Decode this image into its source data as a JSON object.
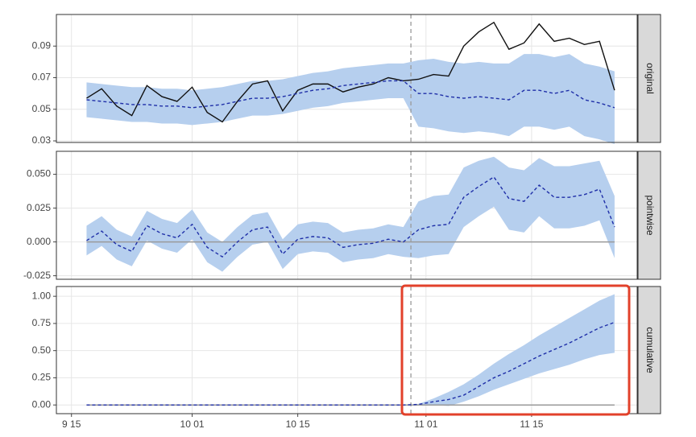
{
  "chart_data": [
    {
      "type": "line",
      "strip": "original",
      "x": [
        "9 17",
        "9 19",
        "9 21",
        "9 23",
        "9 25",
        "9 27",
        "9 29",
        "10 01",
        "10 03",
        "10 05",
        "10 07",
        "10 09",
        "10 11",
        "10 13",
        "10 15",
        "10 17",
        "10 19",
        "10 21",
        "10 23",
        "10 25",
        "10 27",
        "10 29",
        "10 31",
        "11 02",
        "11 04",
        "11 06",
        "11 08",
        "11 10",
        "11 12",
        "11 14",
        "11 16",
        "11 18",
        "11 20",
        "11 22",
        "11 24",
        "11 26"
      ],
      "xlim": [
        "9 13",
        "11 29"
      ],
      "vline": "10 30",
      "ylim": [
        0.029,
        0.11
      ],
      "yticks": [
        0.03,
        0.05,
        0.07,
        0.09
      ],
      "band": {
        "color": "#b6cfee",
        "lower": [
          0.045,
          0.044,
          0.043,
          0.042,
          0.042,
          0.041,
          0.041,
          0.04,
          0.041,
          0.042,
          0.044,
          0.046,
          0.046,
          0.047,
          0.049,
          0.051,
          0.052,
          0.054,
          0.055,
          0.056,
          0.057,
          0.057,
          0.039,
          0.038,
          0.036,
          0.035,
          0.036,
          0.035,
          0.033,
          0.039,
          0.039,
          0.037,
          0.039,
          0.033,
          0.031,
          0.028
        ],
        "upper": [
          0.067,
          0.066,
          0.065,
          0.064,
          0.064,
          0.063,
          0.063,
          0.062,
          0.063,
          0.064,
          0.066,
          0.068,
          0.068,
          0.069,
          0.071,
          0.073,
          0.074,
          0.076,
          0.077,
          0.078,
          0.079,
          0.079,
          0.081,
          0.082,
          0.08,
          0.079,
          0.08,
          0.079,
          0.079,
          0.085,
          0.085,
          0.083,
          0.085,
          0.079,
          0.077,
          0.074
        ]
      },
      "series": [
        {
          "color": "#111111",
          "dashed": false,
          "values": [
            0.057,
            0.063,
            0.052,
            0.046,
            0.065,
            0.058,
            0.055,
            0.064,
            0.048,
            0.042,
            0.055,
            0.066,
            0.068,
            0.049,
            0.062,
            0.066,
            0.066,
            0.061,
            0.064,
            0.066,
            0.07,
            0.068,
            0.069,
            0.072,
            0.071,
            0.09,
            0.099,
            0.105,
            0.088,
            0.092,
            0.104,
            0.093,
            0.095,
            0.091,
            0.093,
            0.062
          ]
        },
        {
          "color": "#1f2fa8",
          "dashed": true,
          "values": [
            0.056,
            0.055,
            0.054,
            0.053,
            0.053,
            0.052,
            0.052,
            0.051,
            0.052,
            0.053,
            0.055,
            0.057,
            0.057,
            0.058,
            0.06,
            0.062,
            0.063,
            0.065,
            0.066,
            0.067,
            0.068,
            0.068,
            0.06,
            0.06,
            0.058,
            0.057,
            0.058,
            0.057,
            0.056,
            0.062,
            0.062,
            0.06,
            0.062,
            0.056,
            0.054,
            0.051
          ]
        }
      ]
    },
    {
      "type": "line",
      "strip": "pointwise",
      "x": [
        "9 17",
        "9 19",
        "9 21",
        "9 23",
        "9 25",
        "9 27",
        "9 29",
        "10 01",
        "10 03",
        "10 05",
        "10 07",
        "10 09",
        "10 11",
        "10 13",
        "10 15",
        "10 17",
        "10 19",
        "10 21",
        "10 23",
        "10 25",
        "10 27",
        "10 29",
        "10 31",
        "11 02",
        "11 04",
        "11 06",
        "11 08",
        "11 10",
        "11 12",
        "11 14",
        "11 16",
        "11 18",
        "11 20",
        "11 22",
        "11 24",
        "11 26"
      ],
      "xlim": [
        "9 13",
        "11 29"
      ],
      "vline": "10 30",
      "hline": 0,
      "ylim": [
        -0.0276,
        0.067
      ],
      "yticks": [
        {
          "value": -0.025,
          "label": "-0.025"
        },
        {
          "value": 0,
          "label": "0.000"
        },
        {
          "value": 0.025,
          "label": "0.025"
        },
        {
          "value": 0.05,
          "label": "0.050"
        }
      ],
      "band": {
        "color": "#b6cfee",
        "lower": [
          -0.01,
          -0.003,
          -0.013,
          -0.018,
          0.001,
          -0.005,
          -0.008,
          0.002,
          -0.015,
          -0.022,
          -0.011,
          -0.002,
          0.0,
          -0.02,
          -0.009,
          -0.007,
          -0.008,
          -0.015,
          -0.013,
          -0.012,
          -0.009,
          -0.011,
          -0.012,
          -0.01,
          -0.009,
          0.011,
          0.019,
          0.026,
          0.009,
          0.007,
          0.019,
          0.01,
          0.01,
          0.012,
          0.016,
          -0.012
        ],
        "upper": [
          0.012,
          0.019,
          0.009,
          0.004,
          0.023,
          0.017,
          0.014,
          0.024,
          0.007,
          0.0,
          0.011,
          0.02,
          0.022,
          0.002,
          0.013,
          0.015,
          0.014,
          0.007,
          0.009,
          0.01,
          0.013,
          0.011,
          0.03,
          0.034,
          0.035,
          0.055,
          0.06,
          0.063,
          0.055,
          0.053,
          0.062,
          0.056,
          0.056,
          0.058,
          0.06,
          0.034
        ]
      },
      "series": [
        {
          "color": "#1f2fa8",
          "dashed": true,
          "values": [
            0.001,
            0.008,
            -0.002,
            -0.007,
            0.012,
            0.006,
            0.003,
            0.013,
            -0.004,
            -0.011,
            0.0,
            0.009,
            0.011,
            -0.009,
            0.002,
            0.004,
            0.003,
            -0.004,
            -0.002,
            -0.001,
            0.002,
            0.0,
            0.009,
            0.012,
            0.013,
            0.033,
            0.041,
            0.048,
            0.032,
            0.03,
            0.042,
            0.033,
            0.033,
            0.035,
            0.039,
            0.011
          ]
        }
      ]
    },
    {
      "type": "line",
      "strip": "cumulative",
      "x": [
        "9 17",
        "9 19",
        "9 21",
        "9 23",
        "9 25",
        "9 27",
        "9 29",
        "10 01",
        "10 03",
        "10 05",
        "10 07",
        "10 09",
        "10 11",
        "10 13",
        "10 15",
        "10 17",
        "10 19",
        "10 21",
        "10 23",
        "10 25",
        "10 27",
        "10 29",
        "10 31",
        "11 02",
        "11 04",
        "11 06",
        "11 08",
        "11 10",
        "11 12",
        "11 14",
        "11 16",
        "11 18",
        "11 20",
        "11 22",
        "11 24",
        "11 26"
      ],
      "xlim": [
        "9 13",
        "11 29"
      ],
      "vline": "10 30",
      "hline": 0,
      "xticks": [
        "9 15",
        "10 01",
        "10 15",
        "11 01",
        "11 15"
      ],
      "ylim": [
        -0.08,
        1.09
      ],
      "yticks": [
        {
          "value": 0,
          "label": "0.00"
        },
        {
          "value": 0.25,
          "label": "0.25"
        },
        {
          "value": 0.5,
          "label": "0.50"
        },
        {
          "value": 0.75,
          "label": "0.75"
        },
        {
          "value": 1,
          "label": "1.00"
        }
      ],
      "band": {
        "color": "#b6cfee",
        "lower": [
          0,
          0,
          0,
          0,
          0,
          0,
          0,
          0,
          0,
          0,
          0,
          0,
          0,
          0,
          0,
          0,
          0,
          0,
          0,
          0,
          0,
          0,
          0.0,
          0.0,
          -0.01,
          0.03,
          0.08,
          0.14,
          0.19,
          0.24,
          0.29,
          0.33,
          0.37,
          0.42,
          0.46,
          0.48
        ],
        "upper": [
          0,
          0,
          0,
          0,
          0,
          0,
          0,
          0,
          0,
          0,
          0,
          0,
          0,
          0,
          0,
          0,
          0,
          0,
          0,
          0,
          0,
          0,
          0.01,
          0.06,
          0.12,
          0.19,
          0.28,
          0.38,
          0.47,
          0.55,
          0.64,
          0.72,
          0.8,
          0.88,
          0.96,
          1.02
        ]
      },
      "series": [
        {
          "color": "#1f2fa8",
          "dashed": true,
          "values": [
            0,
            0,
            0,
            0,
            0,
            0,
            0,
            0,
            0,
            0,
            0,
            0,
            0,
            0,
            0,
            0,
            0,
            0,
            0,
            0,
            0,
            0,
            0.005,
            0.03,
            0.05,
            0.09,
            0.17,
            0.25,
            0.31,
            0.38,
            0.45,
            0.51,
            0.57,
            0.64,
            0.71,
            0.76
          ]
        }
      ]
    }
  ]
}
